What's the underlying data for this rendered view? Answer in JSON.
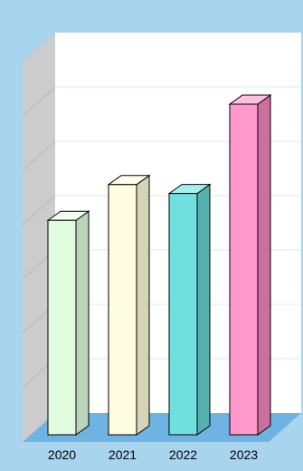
{
  "chart_data": {
    "type": "bar",
    "style": "3d-column",
    "categories": [
      "2020",
      "2021",
      "2022",
      "2023"
    ],
    "values": [
      48,
      56,
      54,
      74
    ],
    "ylim": [
      0,
      80
    ],
    "title": "",
    "xlabel": "",
    "ylabel": "",
    "grid": true,
    "legend": "none",
    "colors": {
      "background": "#a9d4ee",
      "plot_back_wall": "#ffffff",
      "plot_side_wall": "#cccccc",
      "plot_floor": "#6fb3e3",
      "gridline": "#d7ecec",
      "bar_fronts": [
        "#e1fbe1",
        "#fffde0",
        "#6fe0de",
        "#ff99cc"
      ],
      "bar_sides": [
        "#b9d4b9",
        "#d6d4b8",
        "#56b0ae",
        "#cc6f9e"
      ],
      "bar_tops": [
        "#f0fff0",
        "#ffffee",
        "#a5f0ee",
        "#ffc0e0"
      ]
    }
  }
}
